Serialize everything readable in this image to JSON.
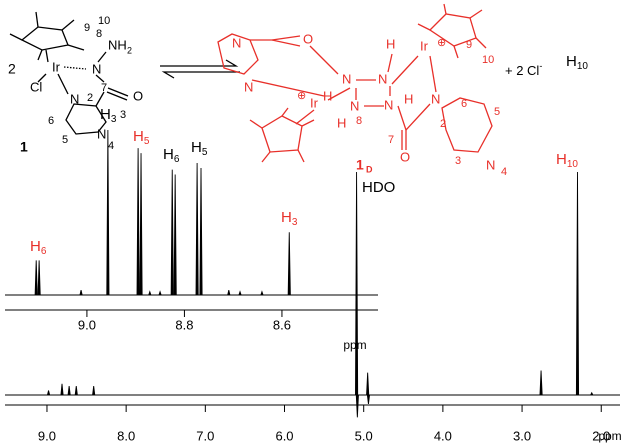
{
  "scheme": {
    "left": {
      "color": "#000000",
      "labels": [
        "2",
        "Cl",
        "Ir",
        "N",
        "NH",
        "2",
        "8",
        "9",
        "10",
        "7",
        "2",
        "O",
        "N",
        "3",
        "6",
        "5",
        "N",
        "4",
        "1"
      ]
    },
    "right": {
      "color": "#e8302a",
      "labels": [
        "N",
        "N",
        "O",
        "H",
        "N",
        "N",
        "H",
        "N",
        "N",
        "H",
        "H",
        "8",
        "Ir",
        "⊕",
        "Ir",
        "⊕",
        "9",
        "10",
        "N",
        "6",
        "7",
        "2",
        "O",
        "5",
        "3",
        "N",
        "4",
        "1",
        "D"
      ]
    },
    "counter_ion": {
      "text": "+ 2 Cl",
      "sup": "-"
    }
  },
  "chart_data": [
    {
      "type": "spectrum",
      "xlabel": "ppm",
      "xlim": [
        9.53,
        1.7
      ],
      "xticks": [
        {
          "value": 9,
          "label": "9.0"
        },
        {
          "value": 8,
          "label": "8.0"
        },
        {
          "value": 7,
          "label": "7.0"
        },
        {
          "value": 6,
          "label": "6.0"
        },
        {
          "value": 5,
          "label": "5.0"
        },
        {
          "value": 4,
          "label": "4.0"
        },
        {
          "value": 3,
          "label": "3.0"
        },
        {
          "value": 2,
          "label": "2.0"
        }
      ],
      "ylim": [
        -10,
        100
      ],
      "color": "#000000",
      "x": [
        8.98,
        8.81,
        8.72,
        8.63,
        8.41,
        5.09,
        5.08,
        4.95,
        4.94,
        2.76,
        2.3,
        2.12
      ],
      "values": [
        2,
        5,
        4,
        4,
        4,
        100,
        -10,
        10,
        -4,
        11,
        100,
        1
      ],
      "annotations": [
        {
          "text": "HDO",
          "color": "#000000"
        },
        {
          "text": "H",
          "sub": "10",
          "color": "#000000"
        },
        {
          "text": "H",
          "sub": "10",
          "color": "#e8302a"
        }
      ]
    },
    {
      "type": "spectrum",
      "xlabel": "ppm",
      "xlim": [
        9.168,
        8.403
      ],
      "xticks": [
        {
          "value": 9,
          "label": "9.0"
        },
        {
          "value": 8.8,
          "label": "8.8"
        },
        {
          "value": 8.6,
          "label": "8.6"
        }
      ],
      "ylim": [
        -5,
        100
      ],
      "color": "#000000",
      "x": [
        9.104,
        9.098,
        9.012,
        8.957,
        8.895,
        8.889,
        8.871,
        8.85,
        8.825,
        8.819,
        8.774,
        8.766,
        8.709,
        8.686,
        8.641,
        8.585
      ],
      "values": [
        21,
        21,
        3,
        100,
        89,
        86,
        2,
        2,
        76,
        73,
        80,
        77,
        3,
        2,
        2,
        38
      ],
      "annotations": [
        {
          "text": "H",
          "sub": "6",
          "color": "#e8302a"
        },
        {
          "text": "H",
          "sub": "3",
          "color": "#000000"
        },
        {
          "text": "H",
          "sub": "5",
          "color": "#e8302a"
        },
        {
          "text": "H",
          "sub": "6",
          "color": "#000000"
        },
        {
          "text": "H",
          "sub": "5",
          "color": "#000000"
        },
        {
          "text": "H",
          "sub": "3",
          "color": "#e8302a"
        }
      ]
    }
  ]
}
